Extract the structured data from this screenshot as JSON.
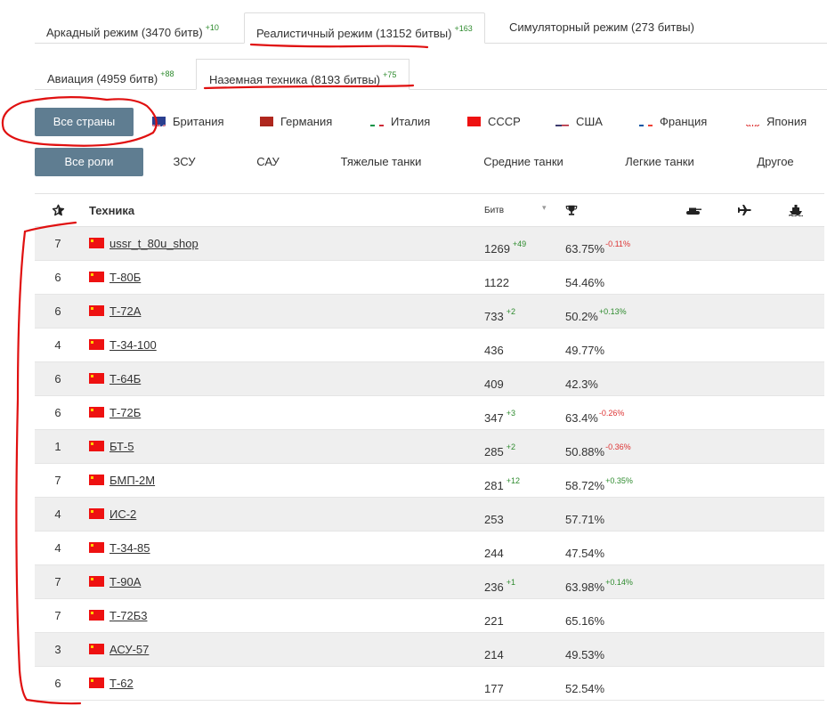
{
  "modes": [
    {
      "label": "Аркадный режим (3470 битв)",
      "delta": "+10"
    },
    {
      "label": "Реалистичный режим (13152 битвы)",
      "delta": "+163"
    },
    {
      "label": "Симуляторный режим (273 битвы)",
      "delta": ""
    }
  ],
  "subtabs": [
    {
      "label": "Авиация (4959 битв)",
      "delta": "+88"
    },
    {
      "label": "Наземная техника (8193 битвы)",
      "delta": "+75"
    }
  ],
  "nations": {
    "all": "Все страны",
    "items": [
      {
        "label": "Британия",
        "icon": "uk-flag-icon"
      },
      {
        "label": "Германия",
        "icon": "germany-flag-icon"
      },
      {
        "label": "Италия",
        "icon": "italy-flag-icon"
      },
      {
        "label": "СССР",
        "icon": "ussr-flag-icon"
      },
      {
        "label": "США",
        "icon": "usa-flag-icon"
      },
      {
        "label": "Франция",
        "icon": "france-flag-icon"
      },
      {
        "label": "Япония",
        "icon": "japan-flag-icon"
      }
    ]
  },
  "roles": {
    "all": "Все роли",
    "items": [
      "ЗСУ",
      "САУ",
      "Тяжелые танки",
      "Средние танки",
      "Легкие танки",
      "Другое"
    ]
  },
  "table": {
    "headers": {
      "name": "Техника",
      "battles": "Битв"
    },
    "rows": [
      {
        "rank": "7",
        "name": "ussr_t_80u_shop",
        "battles": "1269",
        "battles_delta": "+49",
        "wr": "63.75%",
        "wr_delta": "-0.11%"
      },
      {
        "rank": "6",
        "name": "Т-80Б",
        "battles": "1122",
        "battles_delta": "",
        "wr": "54.46%",
        "wr_delta": ""
      },
      {
        "rank": "6",
        "name": "Т-72А",
        "battles": "733",
        "battles_delta": "+2",
        "wr": "50.2%",
        "wr_delta": "+0.13%"
      },
      {
        "rank": "4",
        "name": "Т-34-100",
        "battles": "436",
        "battles_delta": "",
        "wr": "49.77%",
        "wr_delta": ""
      },
      {
        "rank": "6",
        "name": "Т-64Б",
        "battles": "409",
        "battles_delta": "",
        "wr": "42.3%",
        "wr_delta": ""
      },
      {
        "rank": "6",
        "name": "Т-72Б",
        "battles": "347",
        "battles_delta": "+3",
        "wr": "63.4%",
        "wr_delta": "-0.26%"
      },
      {
        "rank": "1",
        "name": "БТ-5",
        "battles": "285",
        "battles_delta": "+2",
        "wr": "50.88%",
        "wr_delta": "-0.36%"
      },
      {
        "rank": "7",
        "name": "БМП-2М",
        "battles": "281",
        "battles_delta": "+12",
        "wr": "58.72%",
        "wr_delta": "+0.35%"
      },
      {
        "rank": "4",
        "name": "ИС-2",
        "battles": "253",
        "battles_delta": "",
        "wr": "57.71%",
        "wr_delta": ""
      },
      {
        "rank": "4",
        "name": "Т-34-85",
        "battles": "244",
        "battles_delta": "",
        "wr": "47.54%",
        "wr_delta": ""
      },
      {
        "rank": "7",
        "name": "Т-90А",
        "battles": "236",
        "battles_delta": "+1",
        "wr": "63.98%",
        "wr_delta": "+0.14%"
      },
      {
        "rank": "7",
        "name": "Т-72Б3",
        "battles": "221",
        "battles_delta": "",
        "wr": "65.16%",
        "wr_delta": ""
      },
      {
        "rank": "3",
        "name": "АСУ-57",
        "battles": "214",
        "battles_delta": "",
        "wr": "49.53%",
        "wr_delta": ""
      },
      {
        "rank": "6",
        "name": "Т-62",
        "battles": "177",
        "battles_delta": "",
        "wr": "52.54%",
        "wr_delta": ""
      }
    ]
  },
  "colors": {
    "accent_button": "#5f7d91",
    "positive": "#2e8b2e",
    "negative": "#d33333",
    "annotation": "#e01010"
  }
}
